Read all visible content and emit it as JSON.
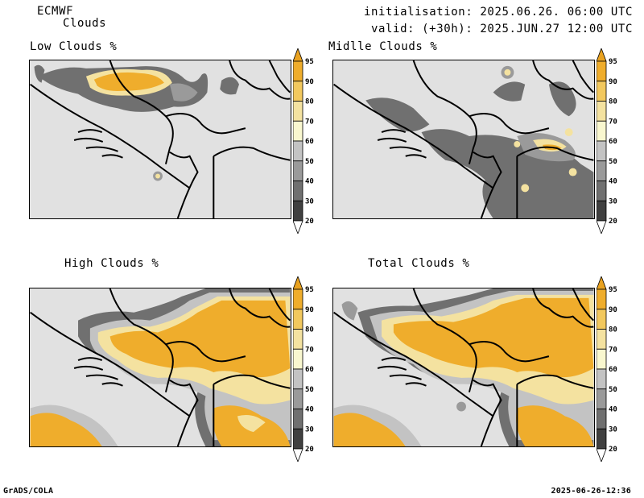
{
  "header": {
    "model": "ECMWF",
    "product": "Clouds",
    "initialisation": "initialisation: 2025.06.26. 06:00 UTC",
    "valid": "valid: (+30h): 2025.JUN.27 12:00 UTC"
  },
  "panels": [
    {
      "title": "Low Clouds %"
    },
    {
      "title": "Midlle Clouds %"
    },
    {
      "title": "High Clouds %"
    },
    {
      "title": "Total Clouds %"
    }
  ],
  "colorbar": {
    "levels": [
      "20",
      "30",
      "40",
      "50",
      "60",
      "70",
      "80",
      "90",
      "95"
    ],
    "colors": [
      "#ffffff",
      "#404040",
      "#707070",
      "#9a9a9a",
      "#c3c3c3",
      "#f9f7cf",
      "#f4e2a0",
      "#f2c85e",
      "#efad2c",
      "#e9a220"
    ]
  },
  "footer": {
    "left": "GrADS/COLA",
    "right": "2025-06-26-12:36"
  }
}
